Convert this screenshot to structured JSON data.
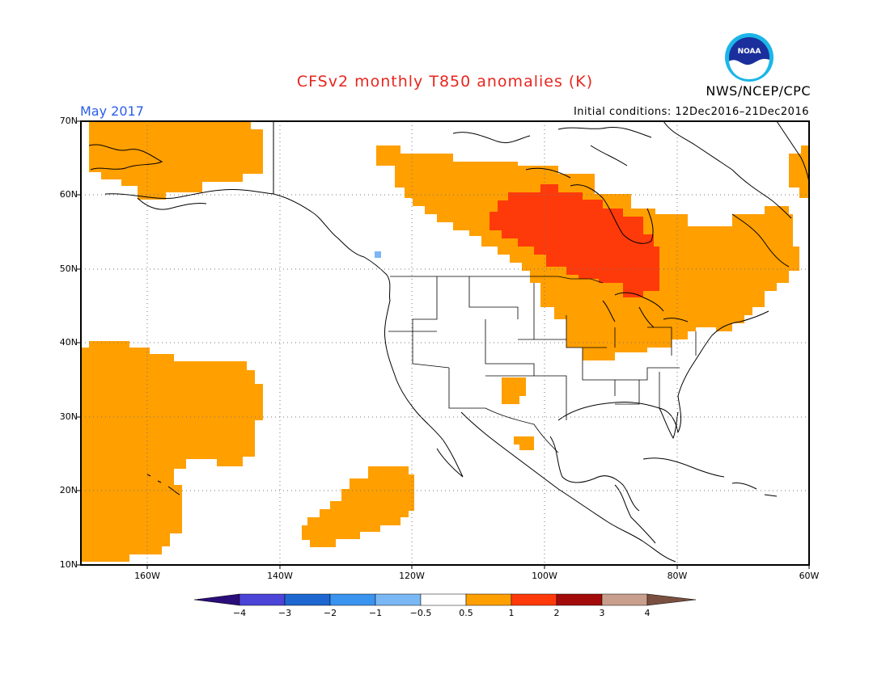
{
  "header": {
    "title": "CFSv2 monthly T850 anomalies (K)",
    "period": "May 2017",
    "initial_conditions": "Initial conditions: 12Dec2016–21Dec2016",
    "agency": "NWS/NCEP/CPC",
    "logo_text": "NOAA"
  },
  "map": {
    "lon_range": [
      -170,
      -60
    ],
    "lat_range": [
      10,
      70
    ],
    "lat_labels": [
      "70N",
      "60N",
      "50N",
      "40N",
      "30N",
      "20N",
      "10N"
    ],
    "lon_labels": [
      "160W",
      "140W",
      "120W",
      "100W",
      "80W",
      "60W"
    ],
    "grid": "dotted",
    "colors": {
      "warm1": "#ff9f00",
      "warm2": "#ff3a0a",
      "cool": "#7ab8f5"
    }
  },
  "legend": {
    "labels": [
      "−4",
      "−3",
      "−2",
      "−1",
      "−0.5",
      "0.5",
      "1",
      "2",
      "3",
      "4"
    ],
    "colors": [
      "#3a18a8",
      "#4b44d6",
      "#1e67d1",
      "#3a94f0",
      "#7ab8f5",
      "#ffffff",
      "#ff9f00",
      "#ff3a0a",
      "#a30a0a",
      "#c89e8c"
    ],
    "end_colors": [
      "#2b0d7a",
      "#7a5040"
    ]
  }
}
